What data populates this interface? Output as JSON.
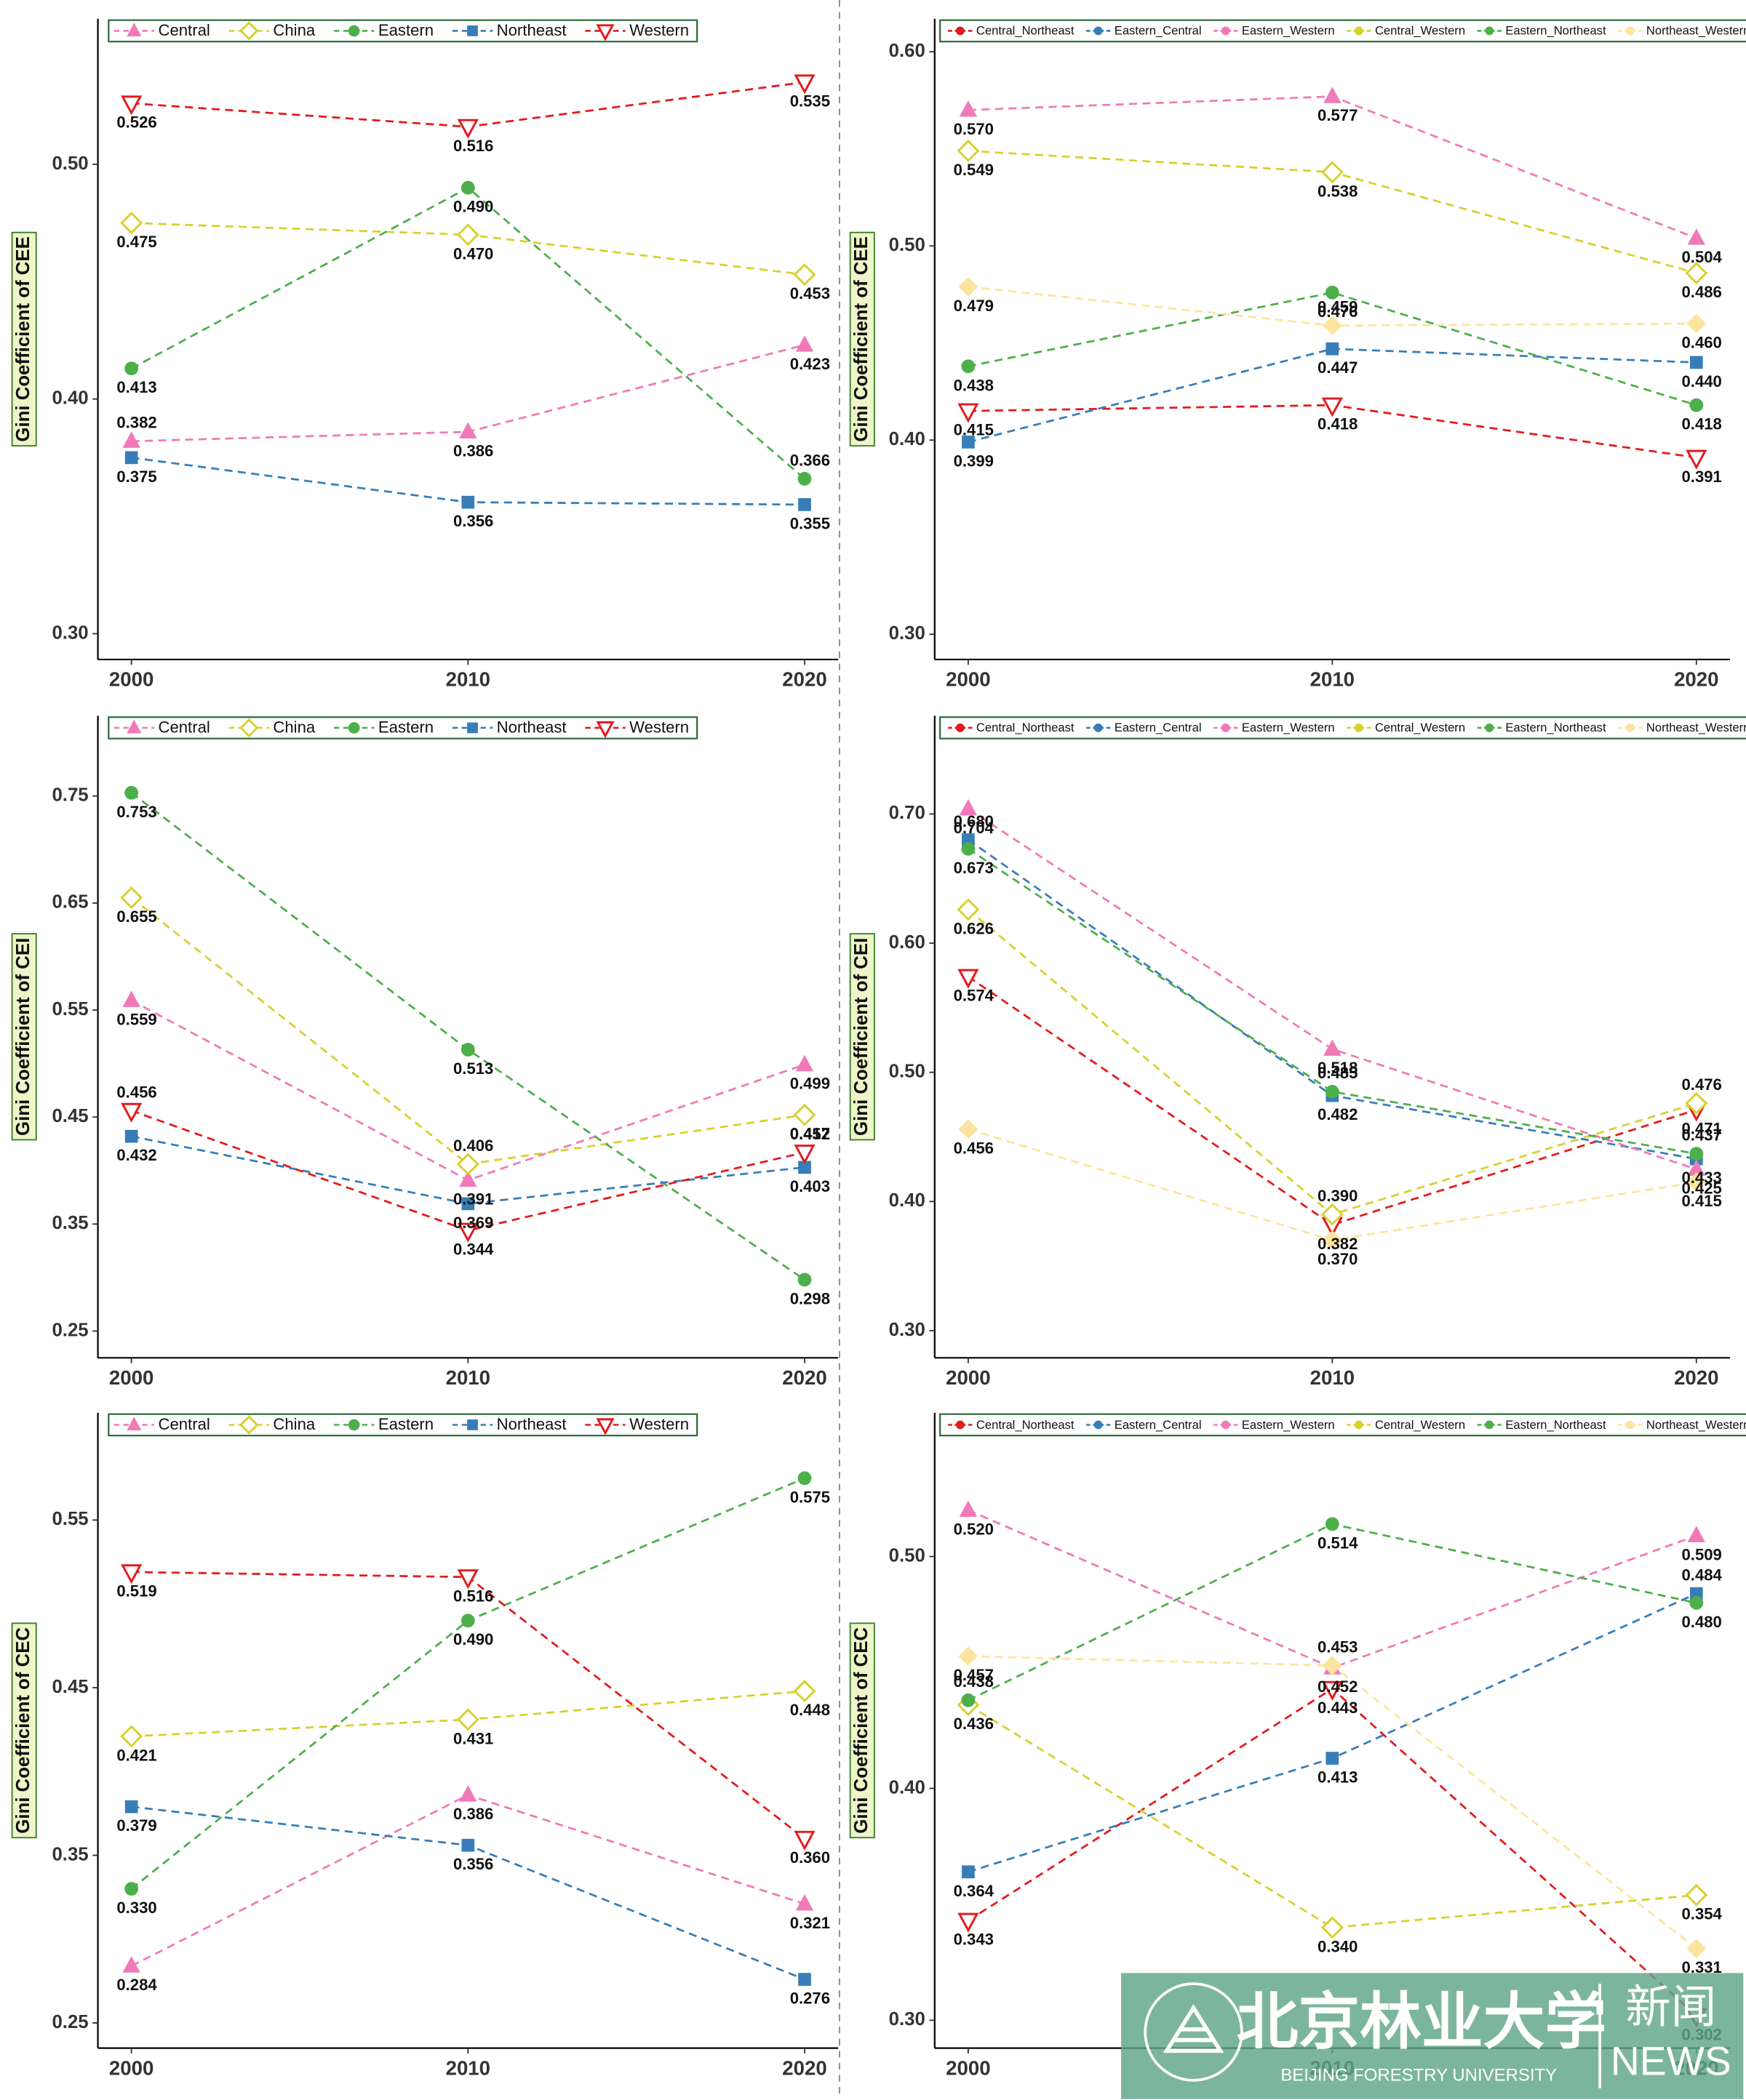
{
  "chart_data": [
    {
      "type": "line",
      "y_label": "Gini Coefficient of CEE",
      "categories": [
        "2000",
        "2010",
        "2020"
      ],
      "legend": "top-left",
      "legend_symbol": "marker",
      "ylim": [
        0.289,
        0.562
      ],
      "yticks": [
        {
          "value": 0.3,
          "label": "0.30"
        },
        {
          "value": 0.4,
          "label": "0.40"
        },
        {
          "value": 0.5,
          "label": "0.50"
        }
      ],
      "series": [
        {
          "name": "Central",
          "color": "#f07ab8",
          "marker": "triangle",
          "values": [
            0.382,
            0.386,
            0.423
          ],
          "value_labels": [
            "0.382",
            "0.386",
            "0.423"
          ]
        },
        {
          "name": "China",
          "color": "#d9d02e",
          "marker": "diamond-open",
          "values": [
            0.475,
            0.47,
            0.453
          ],
          "value_labels": [
            "0.475",
            "0.470",
            "0.453"
          ]
        },
        {
          "name": "Eastern",
          "color": "#4daf4a",
          "marker": "circle",
          "values": [
            0.413,
            0.49,
            0.366
          ],
          "value_labels": [
            "0.413",
            "0.490",
            "0.366"
          ]
        },
        {
          "name": "Northeast",
          "color": "#377eb8",
          "marker": "square",
          "values": [
            0.375,
            0.356,
            0.355
          ],
          "value_labels": [
            "0.375",
            "0.356",
            "0.355"
          ]
        },
        {
          "name": "Western",
          "color": "#e41a1c",
          "marker": "triangle-down-open",
          "values": [
            0.526,
            0.516,
            0.535
          ],
          "value_labels": [
            "0.526",
            "0.516",
            "0.535"
          ]
        }
      ]
    },
    {
      "type": "line",
      "y_label": "Gini Coefficient of CEE",
      "categories": [
        "2000",
        "2010",
        "2020"
      ],
      "legend": "top-left",
      "legend_symbol": "circle",
      "ylim": [
        0.287,
        0.617
      ],
      "yticks": [
        {
          "value": 0.3,
          "label": "0.30"
        },
        {
          "value": 0.4,
          "label": "0.40"
        },
        {
          "value": 0.5,
          "label": "0.50"
        },
        {
          "value": 0.6,
          "label": "0.60"
        }
      ],
      "series": [
        {
          "name": "Central_Northeast",
          "color": "#e41a1c",
          "marker": "triangle-down-open",
          "values": [
            0.415,
            0.418,
            0.391
          ],
          "value_labels": [
            "0.415",
            "0.418",
            "0.391"
          ]
        },
        {
          "name": "Eastern_Central",
          "color": "#377eb8",
          "marker": "square",
          "values": [
            0.399,
            0.447,
            0.44
          ],
          "value_labels": [
            "0.399",
            "0.447",
            "0.440"
          ]
        },
        {
          "name": "Eastern_Western",
          "color": "#f07ab8",
          "marker": "triangle",
          "values": [
            0.57,
            0.577,
            0.504
          ],
          "value_labels": [
            "0.570",
            "0.577",
            "0.504"
          ]
        },
        {
          "name": "Central_Western",
          "color": "#d9d02e",
          "marker": "diamond-open",
          "values": [
            0.549,
            0.538,
            0.486
          ],
          "value_labels": [
            "0.549",
            "0.538",
            "0.486"
          ]
        },
        {
          "name": "Eastern_Northeast",
          "color": "#4daf4a",
          "marker": "circle",
          "values": [
            0.438,
            0.476,
            0.418
          ],
          "value_labels": [
            "0.438",
            "0.476",
            "0.418"
          ]
        },
        {
          "name": "Northeast_Western",
          "color": "#fde49e",
          "marker": "diamond",
          "values": [
            0.479,
            0.459,
            0.46
          ],
          "value_labels": [
            "0.479",
            "0.459",
            "0.460"
          ]
        }
      ]
    },
    {
      "type": "line",
      "y_label": "Gini Coefficient of CEI",
      "categories": [
        "2000",
        "2010",
        "2020"
      ],
      "legend": "top-left",
      "legend_symbol": "marker",
      "ylim": [
        0.225,
        0.825
      ],
      "yticks": [
        {
          "value": 0.25,
          "label": "0.25"
        },
        {
          "value": 0.35,
          "label": "0.35"
        },
        {
          "value": 0.45,
          "label": "0.45"
        },
        {
          "value": 0.55,
          "label": "0.55"
        },
        {
          "value": 0.65,
          "label": "0.65"
        },
        {
          "value": 0.75,
          "label": "0.75"
        }
      ],
      "series": [
        {
          "name": "Central",
          "color": "#f07ab8",
          "marker": "triangle",
          "values": [
            0.559,
            0.391,
            0.499
          ],
          "value_labels": [
            "0.559",
            "0.391",
            "0.499"
          ]
        },
        {
          "name": "China",
          "color": "#d9d02e",
          "marker": "diamond-open",
          "values": [
            0.655,
            0.406,
            0.452
          ],
          "value_labels": [
            "0.655",
            "0.406",
            "0.452"
          ]
        },
        {
          "name": "Eastern",
          "color": "#4daf4a",
          "marker": "circle",
          "values": [
            0.753,
            0.513,
            0.298
          ],
          "value_labels": [
            "0.753",
            "0.513",
            "0.298"
          ]
        },
        {
          "name": "Northeast",
          "color": "#377eb8",
          "marker": "square",
          "values": [
            0.432,
            0.369,
            0.403
          ],
          "value_labels": [
            "0.432",
            "0.369",
            "0.403"
          ]
        },
        {
          "name": "Western",
          "color": "#e41a1c",
          "marker": "triangle-down-open",
          "values": [
            0.456,
            0.344,
            0.417
          ],
          "value_labels": [
            "0.456",
            "0.344",
            "0.417"
          ]
        }
      ]
    },
    {
      "type": "line",
      "y_label": "Gini Coefficient of CEI",
      "categories": [
        "2000",
        "2010",
        "2020"
      ],
      "legend": "top-left",
      "legend_symbol": "circle",
      "ylim": [
        0.279,
        0.776
      ],
      "yticks": [
        {
          "value": 0.3,
          "label": "0.30"
        },
        {
          "value": 0.4,
          "label": "0.40"
        },
        {
          "value": 0.5,
          "label": "0.50"
        },
        {
          "value": 0.6,
          "label": "0.60"
        },
        {
          "value": 0.7,
          "label": "0.70"
        }
      ],
      "series": [
        {
          "name": "Central_Northeast",
          "color": "#e41a1c",
          "marker": "triangle-down-open",
          "values": [
            0.574,
            0.382,
            0.471
          ],
          "value_labels": [
            "0.574",
            "0.382",
            "0.471"
          ]
        },
        {
          "name": "Eastern_Central",
          "color": "#377eb8",
          "marker": "square",
          "values": [
            0.68,
            0.482,
            0.433
          ],
          "value_labels": [
            "0.680",
            "0.482",
            "0.433"
          ]
        },
        {
          "name": "Eastern_Western",
          "color": "#f07ab8",
          "marker": "triangle",
          "values": [
            0.704,
            0.518,
            0.425
          ],
          "value_labels": [
            "0.704",
            "0.518",
            "0.425"
          ]
        },
        {
          "name": "Central_Western",
          "color": "#d9d02e",
          "marker": "diamond-open",
          "values": [
            0.626,
            0.39,
            0.476
          ],
          "value_labels": [
            "0.626",
            "0.390",
            "0.476"
          ]
        },
        {
          "name": "Eastern_Northeast",
          "color": "#4daf4a",
          "marker": "circle",
          "values": [
            0.673,
            0.485,
            0.437
          ],
          "value_labels": [
            "0.673",
            "0.485",
            "0.437"
          ]
        },
        {
          "name": "Northeast_Western",
          "color": "#fde49e",
          "marker": "diamond",
          "values": [
            0.456,
            0.37,
            0.415
          ],
          "value_labels": [
            "0.456",
            "0.370",
            "0.415"
          ]
        }
      ]
    },
    {
      "type": "line",
      "y_label": "Gini Coefficient of CEC",
      "categories": [
        "2000",
        "2010",
        "2020"
      ],
      "legend": "top-left",
      "legend_symbol": "marker",
      "ylim": [
        0.235,
        0.614
      ],
      "yticks": [
        {
          "value": 0.25,
          "label": "0.25"
        },
        {
          "value": 0.35,
          "label": "0.35"
        },
        {
          "value": 0.45,
          "label": "0.45"
        },
        {
          "value": 0.55,
          "label": "0.55"
        }
      ],
      "series": [
        {
          "name": "Central",
          "color": "#f07ab8",
          "marker": "triangle",
          "values": [
            0.284,
            0.386,
            0.321
          ],
          "value_labels": [
            "0.284",
            "0.386",
            "0.321"
          ]
        },
        {
          "name": "China",
          "color": "#d9d02e",
          "marker": "diamond-open",
          "values": [
            0.421,
            0.431,
            0.448
          ],
          "value_labels": [
            "0.421",
            "0.431",
            "0.448"
          ]
        },
        {
          "name": "Eastern",
          "color": "#4daf4a",
          "marker": "circle",
          "values": [
            0.33,
            0.49,
            0.575
          ],
          "value_labels": [
            "0.330",
            "0.490",
            "0.575"
          ]
        },
        {
          "name": "Northeast",
          "color": "#377eb8",
          "marker": "square",
          "values": [
            0.379,
            0.356,
            0.276
          ],
          "value_labels": [
            "0.379",
            "0.356",
            "0.276"
          ]
        },
        {
          "name": "Western",
          "color": "#e41a1c",
          "marker": "triangle-down-open",
          "values": [
            0.519,
            0.516,
            0.36
          ],
          "value_labels": [
            "0.519",
            "0.516",
            "0.360"
          ]
        }
      ]
    },
    {
      "type": "line",
      "y_label": "Gini Coefficient of CEC",
      "categories": [
        "2000",
        "2010",
        "2020"
      ],
      "legend": "top-left",
      "legend_symbol": "circle",
      "ylim": [
        0.288,
        0.562
      ],
      "yticks": [
        {
          "value": 0.3,
          "label": "0.30"
        },
        {
          "value": 0.4,
          "label": "0.40"
        },
        {
          "value": 0.5,
          "label": "0.50"
        }
      ],
      "series": [
        {
          "name": "Central_Northeast",
          "color": "#e41a1c",
          "marker": "triangle-down-open",
          "values": [
            0.343,
            0.443,
            0.302
          ],
          "value_labels": [
            "0.343",
            "0.443",
            "0.302"
          ]
        },
        {
          "name": "Eastern_Central",
          "color": "#377eb8",
          "marker": "square",
          "values": [
            0.364,
            0.413,
            0.484
          ],
          "value_labels": [
            "0.364",
            "0.413",
            "0.484"
          ]
        },
        {
          "name": "Eastern_Western",
          "color": "#f07ab8",
          "marker": "triangle",
          "values": [
            0.52,
            0.452,
            0.509
          ],
          "value_labels": [
            "0.520",
            "0.452",
            "0.509"
          ]
        },
        {
          "name": "Central_Western",
          "color": "#d9d02e",
          "marker": "diamond-open",
          "values": [
            0.436,
            0.34,
            0.354
          ],
          "value_labels": [
            "0.436",
            "0.340",
            "0.354"
          ]
        },
        {
          "name": "Eastern_Northeast",
          "color": "#4daf4a",
          "marker": "circle",
          "values": [
            0.438,
            0.514,
            0.48
          ],
          "value_labels": [
            "0.438",
            "0.514",
            "0.480"
          ]
        },
        {
          "name": "Northeast_Western",
          "color": "#fde49e",
          "marker": "diamond",
          "values": [
            0.457,
            0.453,
            0.331
          ],
          "value_labels": [
            "0.457",
            "0.453",
            "0.331"
          ]
        }
      ]
    }
  ],
  "watermark": {
    "school": "北京林业大学",
    "news_cn": "新闻",
    "news_en": "NEWS",
    "school_en": "BEIJING FORESTRY UNIVERSITY"
  }
}
